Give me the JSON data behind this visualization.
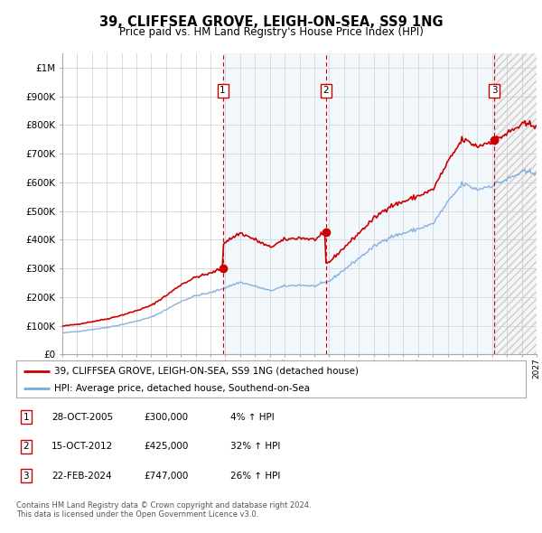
{
  "title": "39, CLIFFSEA GROVE, LEIGH-ON-SEA, SS9 1NG",
  "subtitle": "Price paid vs. HM Land Registry's House Price Index (HPI)",
  "y_ticks": [
    0,
    100000,
    200000,
    300000,
    400000,
    500000,
    600000,
    700000,
    800000,
    900000,
    1000000
  ],
  "y_tick_labels": [
    "£0",
    "£100K",
    "£200K",
    "£300K",
    "£400K",
    "£500K",
    "£600K",
    "£700K",
    "£800K",
    "£900K",
    "£1M"
  ],
  "x_start_year": 1995,
  "x_end_year": 2027,
  "sale_dates_float": [
    2005.826,
    2012.787,
    2024.139
  ],
  "sale_prices": [
    300000,
    425000,
    747000
  ],
  "sale_labels": [
    "1",
    "2",
    "3"
  ],
  "legend_entries": [
    "39, CLIFFSEA GROVE, LEIGH-ON-SEA, SS9 1NG (detached house)",
    "HPI: Average price, detached house, Southend-on-Sea"
  ],
  "table_rows": [
    [
      "1",
      "28-OCT-2005",
      "£300,000",
      "4% ↑ HPI"
    ],
    [
      "2",
      "15-OCT-2012",
      "£425,000",
      "32% ↑ HPI"
    ],
    [
      "3",
      "22-FEB-2024",
      "£747,000",
      "26% ↑ HPI"
    ]
  ],
  "footer_text": "Contains HM Land Registry data © Crown copyright and database right 2024.\nThis data is licensed under the Open Government Licence v3.0.",
  "hpi_color": "#7aaadd",
  "price_color": "#cc0000",
  "sale_marker_color": "#cc0000",
  "vline_color": "#cc0000",
  "shaded_region_color": "#ddeeff",
  "background_color": "#ffffff",
  "grid_color": "#cccccc"
}
